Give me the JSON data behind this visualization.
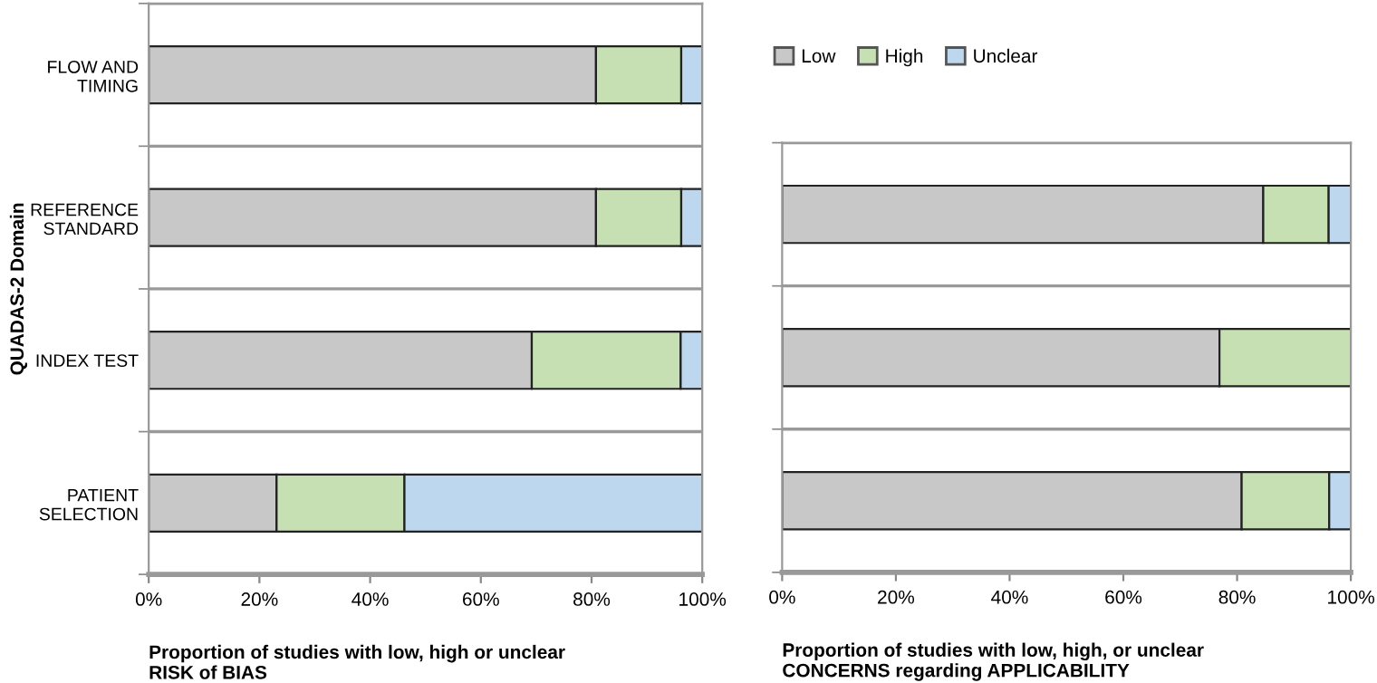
{
  "chart_data": [
    {
      "type": "bar",
      "orientation": "horizontal",
      "stacked": true,
      "xlabel": "Proportion of studies with low, high or unclear\nRISK of BIAS",
      "ylabel": "QUADAS-2 Domain",
      "categories": [
        "FLOW AND\nTIMING",
        "REFERENCE\nSTANDARD",
        "INDEX TEST",
        "PATIENT\nSELECTION"
      ],
      "series": [
        {
          "name": "Low",
          "color": "#c8c8c8",
          "values": [
            80.8,
            80.8,
            69.2,
            23.1
          ]
        },
        {
          "name": "High",
          "color": "#c6e0b4",
          "values": [
            15.4,
            15.4,
            26.9,
            23.1
          ]
        },
        {
          "name": "Unclear",
          "color": "#bdd7ee",
          "values": [
            3.8,
            3.8,
            3.9,
            53.8
          ]
        }
      ],
      "xlim": [
        0,
        100
      ],
      "xticks": [
        {
          "value": 0,
          "label": "0%"
        },
        {
          "value": 20,
          "label": "20%"
        },
        {
          "value": 40,
          "label": "40%"
        },
        {
          "value": 60,
          "label": "60%"
        },
        {
          "value": 80,
          "label": "80%"
        },
        {
          "value": 100,
          "label": "100%"
        }
      ],
      "grid": "y",
      "legend": "top right"
    },
    {
      "type": "bar",
      "orientation": "horizontal",
      "stacked": true,
      "xlabel": "Proportion of studies with low, high, or unclear\nCONCERNS regarding APPLICABILITY",
      "categories": [
        null,
        null,
        null
      ],
      "series": [
        {
          "color": "#c8c8c8",
          "values": [
            84.6,
            76.9,
            80.8
          ]
        },
        {
          "color": "#c6e0b4",
          "values": [
            11.5,
            23.1,
            15.4
          ]
        },
        {
          "color": "#bdd7ee",
          "values": [
            3.9,
            0,
            3.8
          ]
        }
      ],
      "xlim": [
        0,
        100
      ],
      "xticks": [
        {
          "value": 0,
          "label": "0%"
        },
        {
          "value": 20,
          "label": "20%"
        },
        {
          "value": 40,
          "label": "40%"
        },
        {
          "value": 60,
          "label": "60%"
        },
        {
          "value": 80,
          "label": "80%"
        },
        {
          "value": 100,
          "label": "100%"
        }
      ],
      "grid": "y"
    }
  ]
}
